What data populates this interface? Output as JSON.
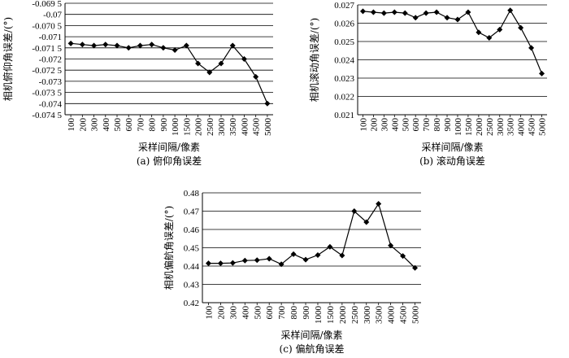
{
  "chart_data": [
    {
      "type": "line",
      "caption": "(a) 俯仰角误差",
      "xlabel": "采样间隔/像素",
      "ylabel": "相机俯仰角误差/(°)",
      "categories": [
        "100",
        "200",
        "300",
        "400",
        "500",
        "600",
        "700",
        "800",
        "900",
        "1000",
        "1500",
        "2000",
        "2500",
        "3000",
        "3500",
        "4000",
        "4500",
        "5000"
      ],
      "yticks": [
        "-0.069 5",
        "-0.07",
        "-0.070 5",
        "-0.071",
        "-0.071 5",
        "-0.072",
        "-0.072 5",
        "-0.073",
        "-0.073 5",
        "-0.074",
        "-0.074 5"
      ],
      "ylim": [
        -0.0745,
        -0.0695
      ],
      "grid": true,
      "series": [
        {
          "values": [
            -0.0713,
            -0.07135,
            -0.0714,
            -0.07135,
            -0.0714,
            -0.0715,
            -0.0714,
            -0.07135,
            -0.0715,
            -0.0716,
            -0.0714,
            -0.0722,
            -0.0726,
            -0.0722,
            -0.0714,
            -0.072,
            -0.0728,
            -0.074
          ]
        }
      ]
    },
    {
      "type": "line",
      "caption": "(b) 滚动角误差",
      "xlabel": "采样间隔/像素",
      "ylabel": "相机滚动角误差/(°)",
      "categories": [
        "100",
        "200",
        "300",
        "400",
        "500",
        "600",
        "700",
        "800",
        "900",
        "1000",
        "1500",
        "2000",
        "2500",
        "3000",
        "3500",
        "4000",
        "4500",
        "5000"
      ],
      "yticks": [
        "0.027",
        "0.026",
        "0.025",
        "0.024",
        "0.023",
        "0.022",
        "0.021"
      ],
      "ylim": [
        0.021,
        0.027
      ],
      "grid": true,
      "series": [
        {
          "values": [
            0.02665,
            0.0266,
            0.02655,
            0.0266,
            0.02655,
            0.0263,
            0.02655,
            0.0266,
            0.0263,
            0.0262,
            0.0266,
            0.0255,
            0.0252,
            0.02565,
            0.0267,
            0.02575,
            0.02465,
            0.02325
          ]
        }
      ]
    },
    {
      "type": "line",
      "caption": "(c) 偏航角误差",
      "xlabel": "采样间隔/像素",
      "ylabel": "相机偏航角误差/(°)",
      "categories": [
        "100",
        "200",
        "300",
        "400",
        "500",
        "600",
        "700",
        "800",
        "900",
        "1000",
        "1500",
        "2000",
        "2500",
        "3000",
        "3500",
        "4000",
        "4500",
        "5000"
      ],
      "yticks": [
        "0.48",
        "0.47",
        "0.46",
        "0.45",
        "0.44",
        "0.43",
        "0.42"
      ],
      "ylim": [
        0.42,
        0.48
      ],
      "grid": true,
      "series": [
        {
          "values": [
            0.4415,
            0.4415,
            0.4417,
            0.443,
            0.4432,
            0.444,
            0.441,
            0.4465,
            0.4435,
            0.446,
            0.4505,
            0.4458,
            0.47,
            0.464,
            0.474,
            0.4512,
            0.4455,
            0.439
          ]
        }
      ]
    }
  ]
}
